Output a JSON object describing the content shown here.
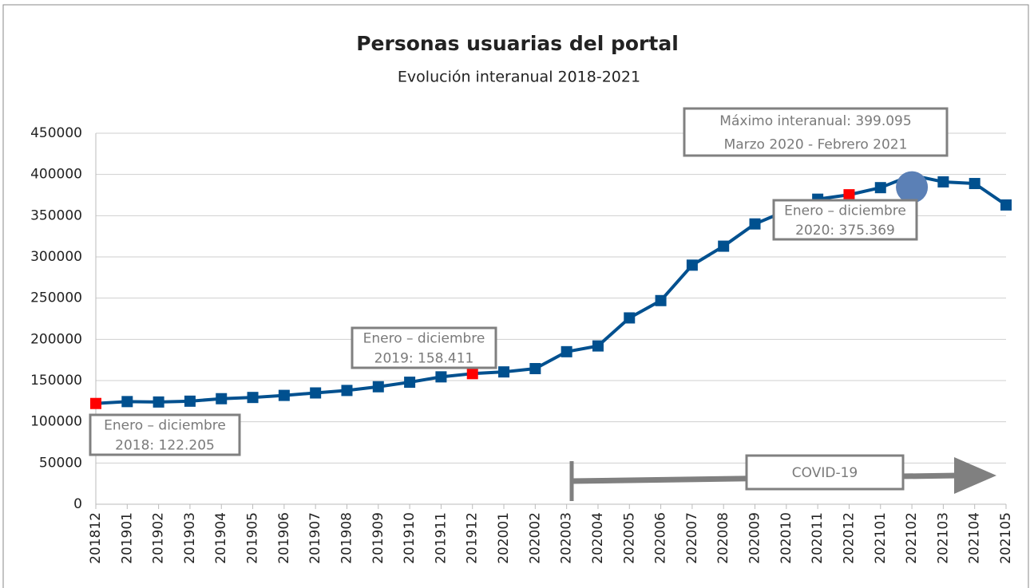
{
  "chart_data": {
    "type": "line",
    "title": "Personas usuarias del portal",
    "subtitle": "Evolución interanual 2018-2021",
    "categories": [
      "201812",
      "201901",
      "201902",
      "201903",
      "201904",
      "201905",
      "201906",
      "201907",
      "201908",
      "201909",
      "201910",
      "201911",
      "201912",
      "202001",
      "202002",
      "202003",
      "202004",
      "202005",
      "202006",
      "202007",
      "202008",
      "202009",
      "202010",
      "202011",
      "202012",
      "202101",
      "202102",
      "202103",
      "202104",
      "202105"
    ],
    "series": [
      {
        "color": "#00508f",
        "values": [
          122205,
          124500,
          124000,
          125000,
          128000,
          129500,
          132000,
          135000,
          138000,
          142500,
          148000,
          154500,
          158411,
          160500,
          164500,
          185000,
          192000,
          226000,
          247000,
          290000,
          313000,
          340000,
          356000,
          370000,
          375369,
          384000,
          399095,
          391000,
          389000,
          363000
        ]
      }
    ],
    "marker_colors": [
      "#ff0000",
      "#00508f",
      "#00508f",
      "#00508f",
      "#00508f",
      "#00508f",
      "#00508f",
      "#00508f",
      "#00508f",
      "#00508f",
      "#00508f",
      "#00508f",
      "#ff0000",
      "#00508f",
      "#00508f",
      "#00508f",
      "#00508f",
      "#00508f",
      "#00508f",
      "#00508f",
      "#00508f",
      "#00508f",
      "#00508f",
      "#00508f",
      "#ff0000",
      "#00508f",
      "#5b80b6",
      "#00508f",
      "#00508f",
      "#00508f"
    ],
    "ylim": [
      0,
      450000
    ],
    "yticks": [
      0,
      50000,
      100000,
      150000,
      200000,
      250000,
      300000,
      350000,
      400000,
      450000
    ],
    "grid": true,
    "annotations": [
      {
        "lines": [
          "Enero – diciembre",
          "2018: 122.205"
        ]
      },
      {
        "lines": [
          "Enero – diciembre",
          "2019: 158.411"
        ]
      },
      {
        "lines": [
          "Enero – diciembre",
          "2020: 375.369"
        ]
      },
      {
        "lines": [
          "Máximo interanual: 399.095",
          "Marzo 2020 - Febrero 2021"
        ]
      },
      {
        "lines": [
          "COVID-19"
        ]
      }
    ]
  }
}
